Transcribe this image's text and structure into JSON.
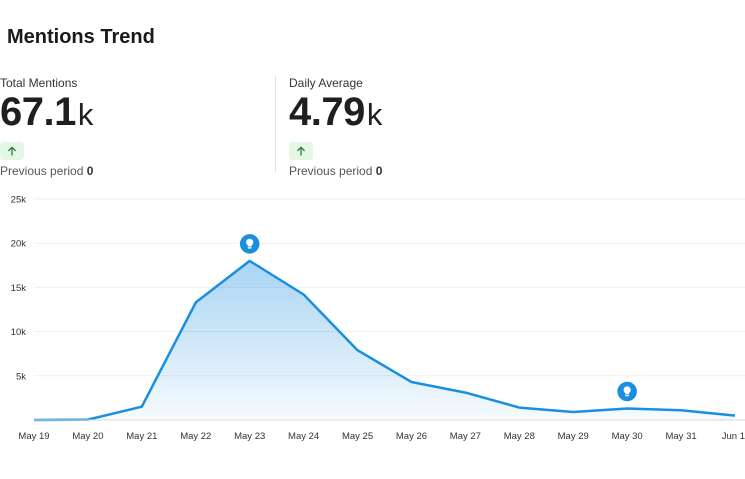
{
  "title": "Mentions Trend",
  "stats": [
    {
      "label": "Total Mentions",
      "value": "67.1",
      "unit": "k",
      "trend": "up",
      "previous_label": "Previous period",
      "previous_value": "0"
    },
    {
      "label": "Daily Average",
      "value": "4.79",
      "unit": "k",
      "trend": "up",
      "previous_label": "Previous period",
      "previous_value": "0"
    }
  ],
  "colors": {
    "line": "#1a8fe0",
    "marker": "#1a8fe0",
    "trend_badge": "#e4f6e6",
    "trend_arrow": "#2e7d32"
  },
  "chart_data": {
    "type": "area",
    "categories": [
      "May 19",
      "May 20",
      "May 21",
      "May 22",
      "May 23",
      "May 24",
      "May 25",
      "May 26",
      "May 27",
      "May 28",
      "May 29",
      "May 30",
      "May 31",
      "Jun 1"
    ],
    "series": [
      {
        "values": [
          0,
          50,
          1500,
          13300,
          18000,
          14200,
          7900,
          4300,
          3100,
          1400,
          900,
          1300,
          1100,
          500
        ]
      }
    ],
    "y_ticks": [
      "5k",
      "10k",
      "15k",
      "20k",
      "25k"
    ],
    "y_tick_values": [
      5000,
      10000,
      15000,
      20000,
      25000
    ],
    "ylim": [
      0,
      25000
    ],
    "grid": true,
    "markers": [
      {
        "category": "May 23",
        "icon": "lightbulb-icon"
      },
      {
        "category": "May 30",
        "icon": "lightbulb-icon"
      }
    ]
  }
}
